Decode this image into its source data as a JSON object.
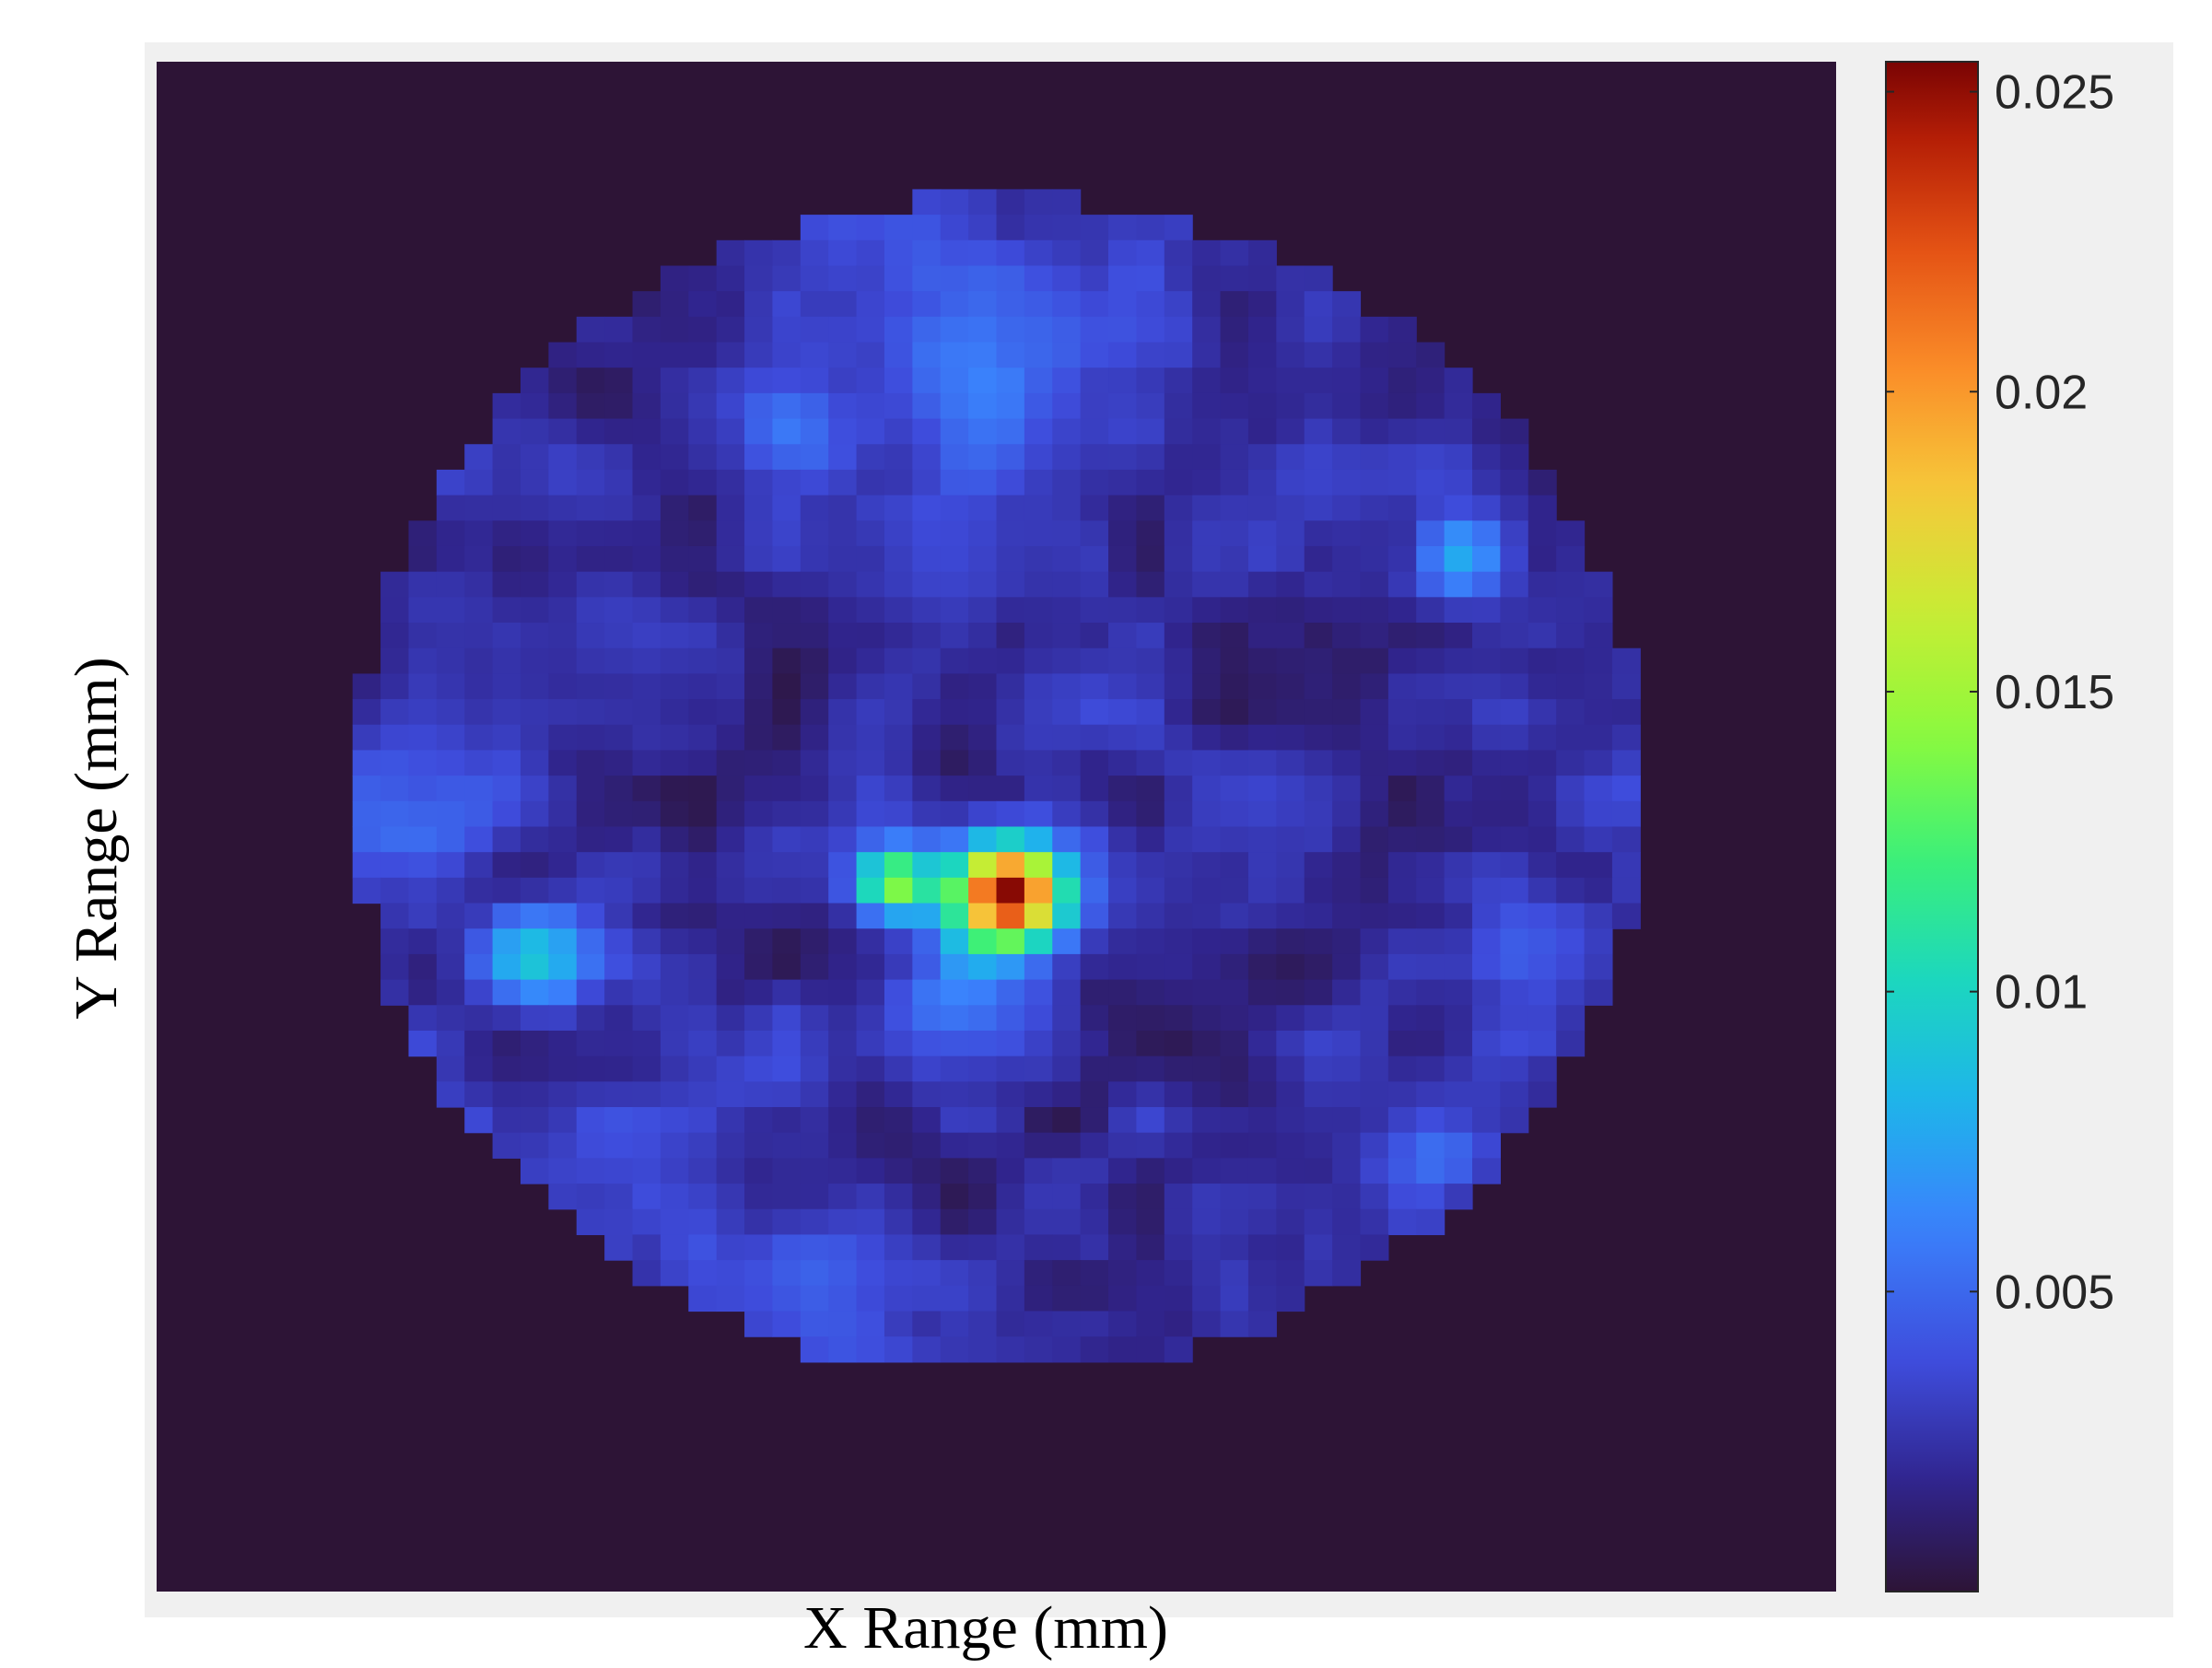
{
  "chart_data": {
    "type": "heatmap",
    "title": "",
    "xlabel": "X Range (mm)",
    "ylabel": "Y Range (mm)",
    "x_ticks_shown": false,
    "y_ticks_shown": false,
    "grid": false,
    "colormap": "turbo",
    "background_color": "#2d1436",
    "colorbar": {
      "position": "right",
      "range": [
        0,
        0.0255
      ],
      "ticks": [
        0.005,
        0.01,
        0.015,
        0.02,
        0.025
      ],
      "tick_labels": [
        "0.005",
        "0.01",
        "0.015",
        "0.02",
        "0.025"
      ]
    },
    "grid_size": [
      60,
      60
    ],
    "domain_shape": "circle",
    "domain_center_cell": [
      30.1,
      28.4
    ],
    "domain_radius_cells": 23.1,
    "baseline_value": 0.0022,
    "features": [
      {
        "description": "peak",
        "center_cell": [
          30.4,
          32.6
        ],
        "peak_value": 0.0255,
        "sigma_cells": 1.5
      },
      {
        "description": "secondary blob left of peak",
        "center_cell": [
          26.4,
          32.2
        ],
        "peak_value": 0.0135,
        "sigma_cells": 1.0
      },
      {
        "description": "streak below peak",
        "center_cell": [
          28.5,
          37.2
        ],
        "peak_value": 0.0065,
        "sigma_cells": 2.0
      },
      {
        "description": "upper right hot spot",
        "center_cell": [
          46.5,
          19.3
        ],
        "peak_value": 0.0085,
        "sigma_cells": 1.2
      },
      {
        "description": "left lower blob",
        "center_cell": [
          13.4,
          35.2
        ],
        "peak_value": 0.0085,
        "sigma_cells": 1.4
      },
      {
        "description": "left mid blob",
        "center_cell": [
          9.5,
          29.0
        ],
        "peak_value": 0.0058,
        "sigma_cells": 2.0
      },
      {
        "description": "upper center streak",
        "center_cell": [
          30.5,
          12.0
        ],
        "peak_value": 0.0052,
        "sigma_cells": 3.5
      },
      {
        "description": "upper left blob",
        "center_cell": [
          22.5,
          14.5
        ],
        "peak_value": 0.0062,
        "sigma_cells": 1.5
      },
      {
        "description": "lower right blob",
        "center_cell": [
          45.5,
          42.5
        ],
        "peak_value": 0.0055,
        "sigma_cells": 1.3
      },
      {
        "description": "lower center-left",
        "center_cell": [
          24.0,
          47.5
        ],
        "peak_value": 0.0045,
        "sigma_cells": 1.8
      },
      {
        "description": "right mid",
        "center_cell": [
          50.0,
          35.0
        ],
        "peak_value": 0.0045,
        "sigma_cells": 1.6
      }
    ]
  }
}
